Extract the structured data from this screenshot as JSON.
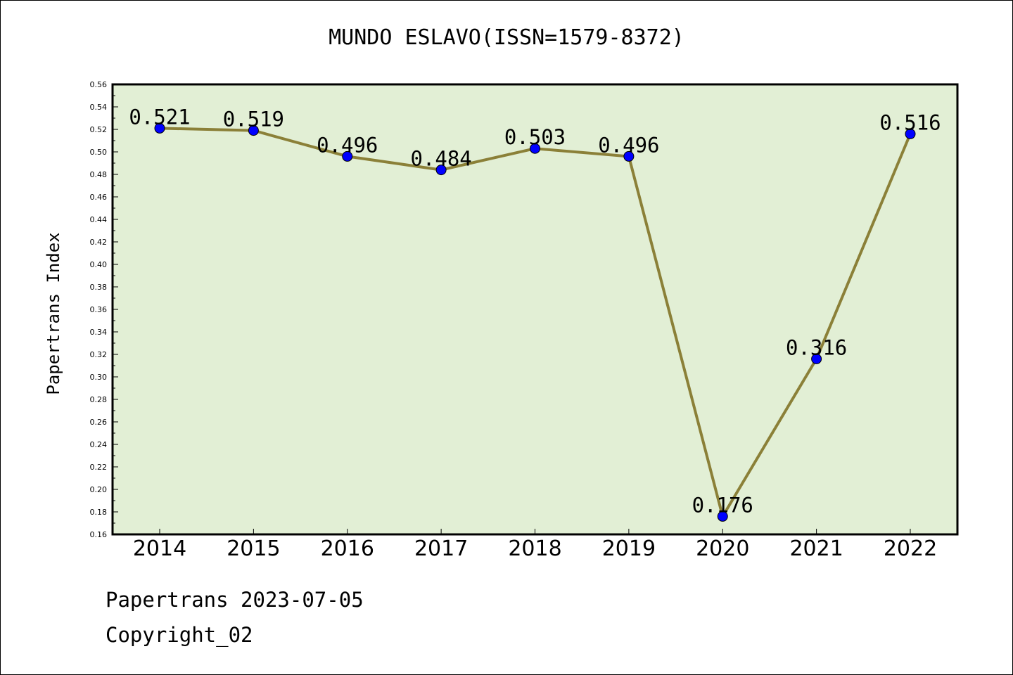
{
  "chart_data": {
    "type": "line",
    "title": "MUNDO ESLAVO(ISSN=1579-8372)",
    "xlabel": "",
    "ylabel": "Papertrans Index",
    "categories": [
      "2014",
      "2015",
      "2016",
      "2017",
      "2018",
      "2019",
      "2020",
      "2021",
      "2022"
    ],
    "values": [
      0.521,
      0.519,
      0.496,
      0.484,
      0.503,
      0.496,
      0.176,
      0.316,
      0.516
    ],
    "data_labels": [
      "0.521",
      "0.519",
      "0.496",
      "0.484",
      "0.503",
      "0.496",
      "0.176",
      "0.316",
      "0.516"
    ],
    "ylim": [
      0.16,
      0.56
    ],
    "yticks": [
      "0.16",
      "0.18",
      "0.20",
      "0.22",
      "0.24",
      "0.26",
      "0.28",
      "0.30",
      "0.32",
      "0.34",
      "0.36",
      "0.38",
      "0.40",
      "0.42",
      "0.44",
      "0.46",
      "0.48",
      "0.50",
      "0.52",
      "0.54",
      "0.56"
    ],
    "grid": false,
    "colors": {
      "plot_background": "#e2efd5",
      "line": "#8b8038",
      "marker": "#0000ff"
    }
  },
  "footer": {
    "date_line": "Papertrans 2023-07-05",
    "copyright_line": "Copyright_02"
  }
}
